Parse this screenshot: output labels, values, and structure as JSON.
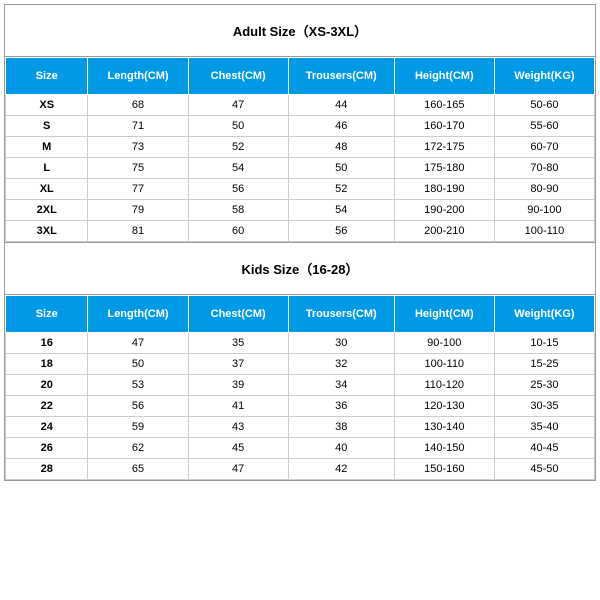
{
  "adult": {
    "title": "Adult Size（XS-3XL）",
    "columns": [
      "Size",
      "Length(CM)",
      "Chest(CM)",
      "Trousers(CM)",
      "Height(CM)",
      "Weight(KG)"
    ],
    "rows": [
      [
        "XS",
        "68",
        "47",
        "44",
        "160-165",
        "50-60"
      ],
      [
        "S",
        "71",
        "50",
        "46",
        "160-170",
        "55-60"
      ],
      [
        "M",
        "73",
        "52",
        "48",
        "172-175",
        "60-70"
      ],
      [
        "L",
        "75",
        "54",
        "50",
        "175-180",
        "70-80"
      ],
      [
        "XL",
        "77",
        "56",
        "52",
        "180-190",
        "80-90"
      ],
      [
        "2XL",
        "79",
        "58",
        "54",
        "190-200",
        "90-100"
      ],
      [
        "3XL",
        "81",
        "60",
        "56",
        "200-210",
        "100-110"
      ]
    ]
  },
  "kids": {
    "title": "Kids Size（16-28）",
    "columns": [
      "Size",
      "Length(CM)",
      "Chest(CM)",
      "Trousers(CM)",
      "Height(CM)",
      "Weight(KG)"
    ],
    "rows": [
      [
        "16",
        "47",
        "35",
        "30",
        "90-100",
        "10-15"
      ],
      [
        "18",
        "50",
        "37",
        "32",
        "100-110",
        "15-25"
      ],
      [
        "20",
        "53",
        "39",
        "34",
        "110-120",
        "25-30"
      ],
      [
        "22",
        "56",
        "41",
        "36",
        "120-130",
        "30-35"
      ],
      [
        "24",
        "59",
        "43",
        "38",
        "130-140",
        "35-40"
      ],
      [
        "26",
        "62",
        "45",
        "40",
        "140-150",
        "40-45"
      ],
      [
        "28",
        "65",
        "47",
        "42",
        "150-160",
        "45-50"
      ]
    ]
  },
  "style": {
    "header_bg": "#0099e5",
    "header_text": "#ffffff",
    "border_color": "#cccccc",
    "outer_border": "#999999",
    "title_fontsize": 13,
    "header_fontsize": 11,
    "cell_fontsize": 11
  }
}
